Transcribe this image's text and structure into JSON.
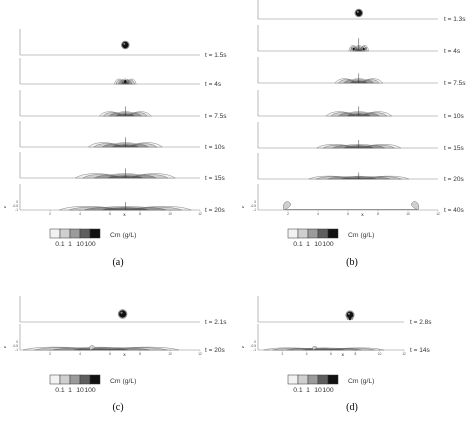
{
  "panels": [
    {
      "id": "a",
      "label": "(a)",
      "frames": [
        {
          "time": "t = 1.5s"
        },
        {
          "time": "t = 4s"
        },
        {
          "time": "t = 7.5s"
        },
        {
          "time": "t = 10s"
        },
        {
          "time": "t = 15s"
        },
        {
          "time": "t = 20s"
        }
      ],
      "axis": {
        "x_title": "X",
        "z_title": "z",
        "x_ticks": [
          "2",
          "4",
          "6",
          "8",
          "10",
          "12"
        ],
        "z_ticks": [
          "0",
          "-0.5",
          "-1"
        ]
      },
      "legend": {
        "title": "Cm (g/L)",
        "values": [
          "0.1",
          "1",
          "10",
          "100"
        ]
      }
    },
    {
      "id": "b",
      "label": "(b)",
      "frames": [
        {
          "time": "t = 1.3s"
        },
        {
          "time": "t = 4s"
        },
        {
          "time": "t = 7.5s"
        },
        {
          "time": "t = 10s"
        },
        {
          "time": "t = 15s"
        },
        {
          "time": "t = 20s"
        },
        {
          "time": "t = 40s"
        }
      ],
      "axis": {
        "x_title": "X",
        "z_title": "z",
        "x_ticks": [
          "2",
          "4",
          "6",
          "8",
          "10",
          "12"
        ],
        "z_ticks": [
          "0",
          "-0.5",
          "-1"
        ]
      },
      "legend": {
        "title": "Cm (g/L)",
        "values": [
          "0.1",
          "1",
          "10",
          "100"
        ]
      }
    },
    {
      "id": "c",
      "label": "(c)",
      "frames": [
        {
          "time": "t = 2.1s"
        },
        {
          "time": "t = 20s"
        }
      ],
      "axis": {
        "x_title": "X",
        "z_title": "z",
        "x_ticks": [
          "2",
          "4",
          "6",
          "8",
          "10",
          "12"
        ],
        "z_ticks": [
          "0",
          "-0.5",
          "-1"
        ]
      },
      "legend": {
        "title": "Cm (g/L)",
        "values": [
          "0.1",
          "1",
          "10",
          "100"
        ]
      }
    },
    {
      "id": "d",
      "label": "(d)",
      "frames": [
        {
          "time": "t = 2.8s"
        },
        {
          "time": "t = 14s"
        }
      ],
      "axis": {
        "x_title": "X",
        "z_title": "z",
        "x_ticks": [
          "2",
          "4",
          "6",
          "8",
          "10",
          "12"
        ],
        "z_ticks": [
          "0",
          "-0.5",
          "-1"
        ]
      },
      "legend": {
        "title": "Cm (g/L)",
        "values": [
          "0.1",
          "1",
          "10",
          "100"
        ]
      }
    }
  ],
  "colors": {
    "level_0.1": "#f2f2f2",
    "level_1": "#cfcfcf",
    "level_10": "#9b9b9b",
    "level_100": "#5e5e5e",
    "level_max": "#111111",
    "frame_line": "#888888"
  }
}
